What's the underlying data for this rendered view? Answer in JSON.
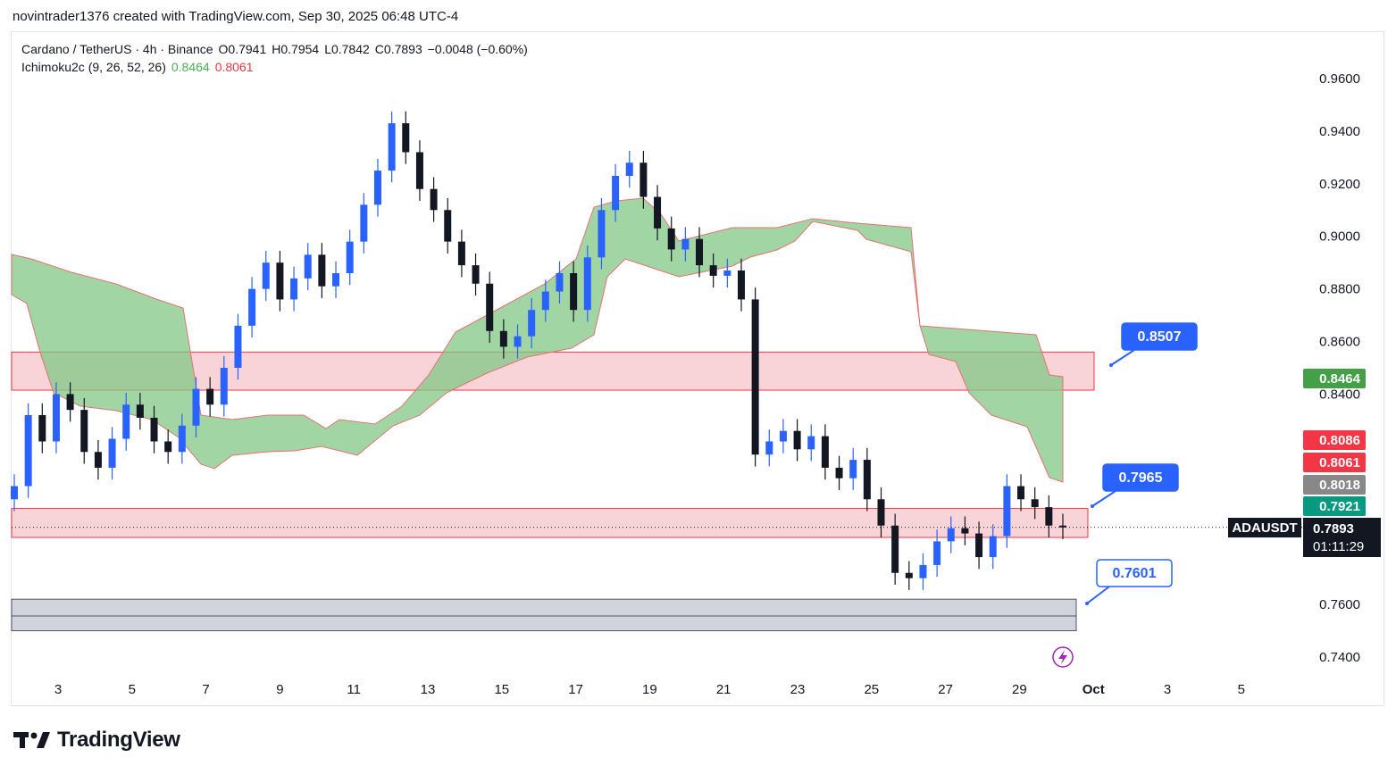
{
  "header": {
    "credit": "novintrader1376 created with TradingView.com, Sep 30, 2025 06:48 UTC-4"
  },
  "legend": {
    "pair": "Cardano / TetherUS · 4h · Binance",
    "open": "O0.7941",
    "high": "H0.7954",
    "low": "L0.7842",
    "close": "C0.7893",
    "change": "−0.0048 (−0.60%)",
    "indicator": "Ichimoku2c (9, 26, 52, 26)",
    "ind_val1": "0.8464",
    "ind_val2": "0.8061"
  },
  "price_axis": {
    "ticks": [
      "0.9600",
      "0.9400",
      "0.9200",
      "0.9000",
      "0.8800",
      "0.8600",
      "0.8400",
      "0.7600",
      "0.7400"
    ],
    "badges": [
      {
        "label": "0.8464",
        "color": "#43a047",
        "text_color": "#ffffff",
        "price": 0.8464
      },
      {
        "label": "0.8086",
        "color": "#f23645",
        "text_color": "#ffffff",
        "price": 0.8086
      },
      {
        "label": "0.8061",
        "color": "#f23645",
        "text_color": "#ffffff",
        "price": 0.8061
      },
      {
        "label": "0.8018",
        "color": "#888888",
        "text_color": "#ffffff",
        "price": 0.8018
      },
      {
        "label": "0.7921",
        "color": "#089981",
        "text_color": "#ffffff",
        "price": 0.7921
      }
    ],
    "current": {
      "symbol": "ADAUSDT",
      "price": "0.7893",
      "countdown": "01:11:29"
    }
  },
  "time_axis": {
    "labels": [
      "3",
      "5",
      "7",
      "9",
      "11",
      "13",
      "15",
      "17",
      "19",
      "21",
      "23",
      "25",
      "27",
      "29",
      "Oct",
      "3",
      "5"
    ]
  },
  "annotations": [
    {
      "label": "0.8507",
      "style": "filled",
      "price": 0.8507
    },
    {
      "label": "0.7965",
      "style": "filled",
      "price": 0.7965
    },
    {
      "label": "0.7601",
      "style": "outline",
      "price": 0.7601
    }
  ],
  "zones": [
    {
      "name": "resistance-zone",
      "top": 0.856,
      "bottom": 0.8415,
      "color": "#f8d3d8"
    },
    {
      "name": "support-zone",
      "top": 0.7965,
      "bottom": 0.7855,
      "color": "#f8d3d8"
    },
    {
      "name": "demand-zone",
      "top": 0.762,
      "bottom": 0.75,
      "color": "#d1d4dc"
    }
  ],
  "colors": {
    "up": "#2962ff",
    "down": "#131722",
    "cloud": "#81c784",
    "cloud_edge": "#e57373",
    "accent": "#2962ff"
  },
  "footer": {
    "brand": "TradingView"
  },
  "chart_data": {
    "type": "candlestick",
    "title": "Cardano / TetherUS · 4h · Binance",
    "ylim": [
      0.73,
      0.97
    ],
    "xlabels": [
      "3",
      "5",
      "7",
      "9",
      "11",
      "13",
      "15",
      "17",
      "19",
      "21",
      "23",
      "25",
      "27",
      "29",
      "Oct",
      "3",
      "5"
    ],
    "close_path": [
      0.805,
      0.832,
      0.822,
      0.84,
      0.834,
      0.818,
      0.812,
      0.823,
      0.836,
      0.831,
      0.822,
      0.818,
      0.828,
      0.842,
      0.836,
      0.85,
      0.866,
      0.88,
      0.89,
      0.876,
      0.884,
      0.893,
      0.881,
      0.886,
      0.898,
      0.912,
      0.925,
      0.943,
      0.932,
      0.918,
      0.91,
      0.898,
      0.889,
      0.882,
      0.864,
      0.858,
      0.862,
      0.872,
      0.879,
      0.886,
      0.872,
      0.892,
      0.91,
      0.923,
      0.928,
      0.915,
      0.903,
      0.895,
      0.899,
      0.889,
      0.885,
      0.887,
      0.876,
      0.817,
      0.822,
      0.826,
      0.819,
      0.824,
      0.812,
      0.808,
      0.815,
      0.8,
      0.79,
      0.772,
      0.77,
      0.775,
      0.784,
      0.789,
      0.787,
      0.778,
      0.786,
      0.805,
      0.8,
      0.797,
      0.79,
      0.7893
    ],
    "ichimoku_values": [
      0.8464,
      0.8061
    ]
  }
}
